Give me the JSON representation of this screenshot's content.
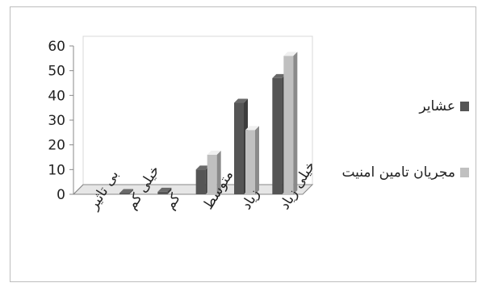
{
  "chart_data": {
    "type": "bar",
    "categories": [
      "بی تاثیر",
      "خیلی کم",
      "کم",
      "متوسط",
      "زیاد",
      "خیلی زیاد"
    ],
    "series": [
      {
        "name": "عشایر",
        "values": [
          0,
          0.5,
          1,
          10,
          37,
          47
        ]
      },
      {
        "name": "مجریان تامین امنیت",
        "values": [
          0,
          0,
          0,
          16,
          26,
          56
        ]
      }
    ],
    "yticks": [
      0,
      10,
      20,
      30,
      40,
      50,
      60
    ],
    "ylim": [
      0,
      60
    ],
    "title": "",
    "xlabel": "",
    "ylabel": "",
    "grid": false,
    "legend": "right",
    "colors": {
      "series0": "#555555",
      "series1": "#c0c0c0",
      "wall": "#d9d9d9",
      "floor": "#e6e6e6",
      "axis": "#888888"
    }
  }
}
